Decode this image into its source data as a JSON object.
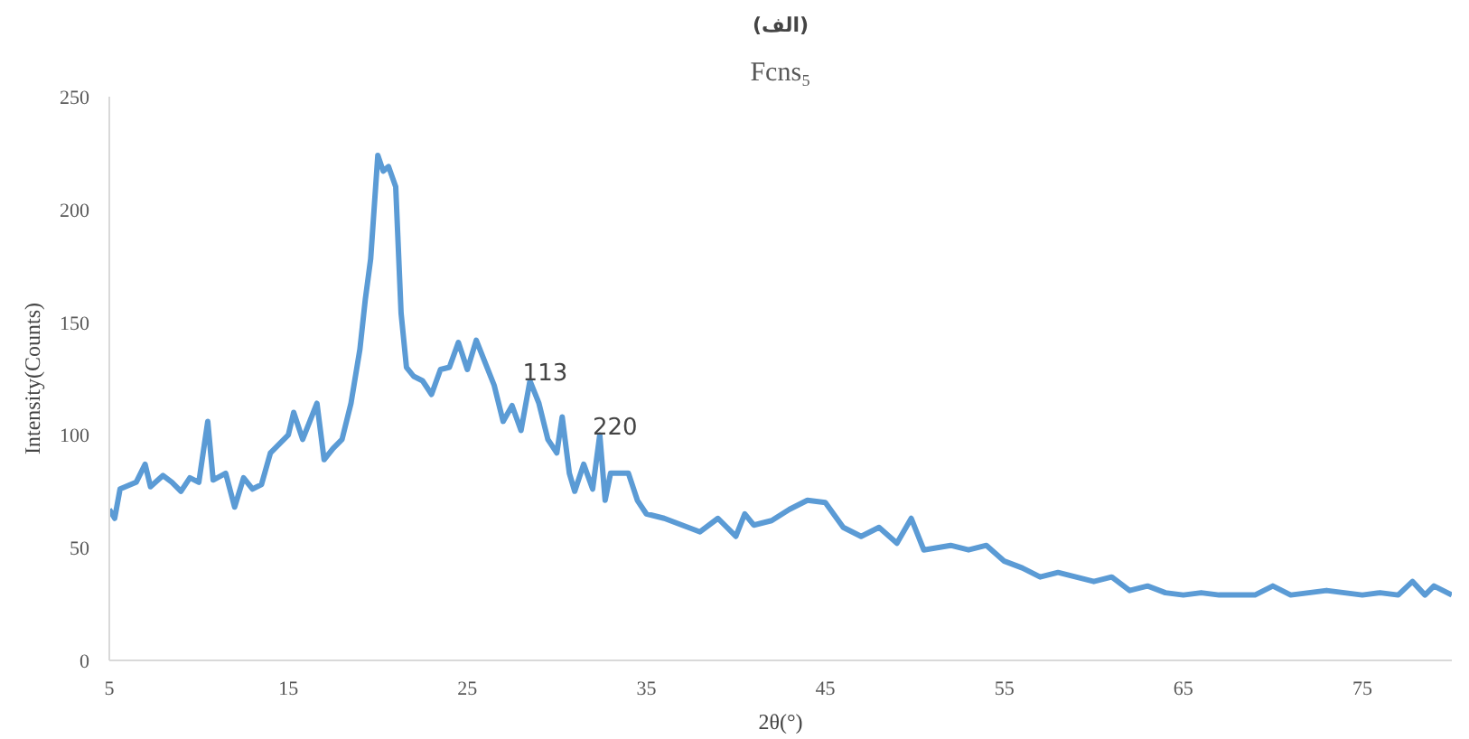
{
  "chart_data": {
    "type": "line",
    "title": "Fcns₅",
    "xlabel": "2θ(°)",
    "ylabel": "Intensity(Counts)",
    "annotations": [
      {
        "text": "(الف)"
      },
      {
        "text": "113",
        "x": 28.5,
        "y": 124
      },
      {
        "text": "220",
        "x": 32.4,
        "y": 100
      }
    ],
    "x": [
      5,
      5.3,
      5.6,
      6.5,
      7,
      7.3,
      8,
      8.5,
      9,
      9.5,
      10,
      10.5,
      10.8,
      11.5,
      12,
      12.5,
      13,
      13.5,
      14,
      15,
      15.3,
      15.8,
      16.2,
      16.6,
      17,
      17.5,
      18,
      18.5,
      19,
      19.3,
      19.6,
      20,
      20.3,
      20.6,
      21,
      21.3,
      21.6,
      22,
      22.5,
      23,
      23.5,
      24,
      24.5,
      25,
      25.5,
      26,
      26.5,
      27,
      27.5,
      28,
      28.5,
      29,
      29.5,
      30,
      30.3,
      30.7,
      31,
      31.5,
      32,
      32.4,
      32.7,
      33,
      34,
      34.5,
      35,
      36,
      37,
      38,
      39,
      40,
      40.5,
      41,
      42,
      43,
      44,
      45,
      46,
      47,
      48,
      49,
      49.8,
      50.5,
      52,
      53,
      54,
      55,
      56,
      57,
      58,
      59,
      60,
      61,
      62,
      63,
      64,
      65,
      66,
      67,
      68,
      69,
      70,
      71,
      72,
      73,
      74,
      75,
      76,
      77,
      77.8,
      78.5,
      79,
      80
    ],
    "series": [
      {
        "color": "#5b9bd5",
        "values": [
          67,
          63,
          76,
          79,
          87,
          77,
          82,
          79,
          75,
          81,
          79,
          106,
          80,
          83,
          68,
          81,
          76,
          78,
          92,
          100,
          110,
          98,
          106,
          114,
          89,
          94,
          98,
          114,
          138,
          160,
          178,
          224,
          217,
          219,
          210,
          154,
          130,
          126,
          124,
          118,
          129,
          130,
          141,
          129,
          142,
          132,
          122,
          106,
          113,
          102,
          124,
          114,
          98,
          92,
          108,
          83,
          75,
          87,
          76,
          100,
          71,
          83,
          83,
          71,
          65,
          63,
          60,
          57,
          63,
          55,
          65,
          60,
          62,
          67,
          71,
          70,
          59,
          55,
          59,
          52,
          63,
          49,
          51,
          49,
          51,
          44,
          41,
          37,
          39,
          37,
          35,
          37,
          31,
          33,
          30,
          29,
          30,
          29,
          29,
          29,
          33,
          29,
          30,
          31,
          30,
          29,
          30,
          29,
          35,
          29,
          33,
          29
        ]
      }
    ],
    "xlim": [
      5,
      80
    ],
    "ylim": [
      0,
      250
    ],
    "xticks": [
      5,
      15,
      25,
      35,
      45,
      55,
      65,
      75
    ],
    "yticks": [
      0,
      50,
      100,
      150,
      200,
      250
    ],
    "grid": false,
    "marker": "none",
    "line_style": "solid"
  }
}
